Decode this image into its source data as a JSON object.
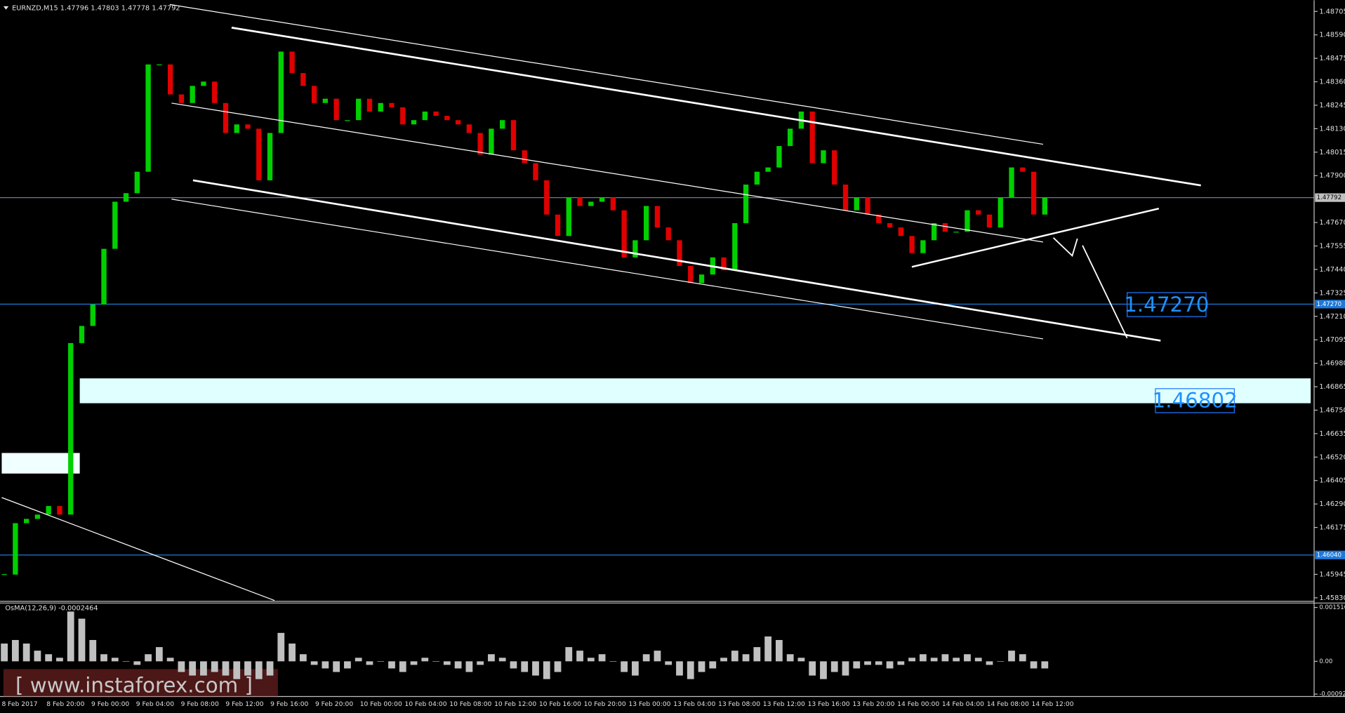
{
  "chart_data": {
    "type": "candlestick",
    "header": "EURNZD,M15  1.47796 1.47803 1.47778 1.47792",
    "ylim": [
      1.45817,
      1.4876
    ],
    "yticks": [
      1.48705,
      {
        "value": 1.4859,
        "label": "1.48590"
      },
      1.48475,
      {
        "value": 1.4836,
        "label": "1.48360"
      },
      1.48245,
      {
        "value": 1.4813,
        "label": "1.48130"
      },
      1.48015,
      {
        "value": 1.479,
        "label": "1.47900"
      },
      {
        "value": 1.4767,
        "label": "1.47670"
      },
      1.47555,
      {
        "value": 1.4744,
        "label": "1.47440"
      },
      1.47325,
      {
        "value": 1.4721,
        "label": "1.47210"
      },
      1.47095,
      {
        "value": 1.4698,
        "label": "1.46980"
      },
      1.46865,
      {
        "value": 1.4675,
        "label": "1.46750"
      },
      1.46635,
      {
        "value": 1.4652,
        "label": "1.46520"
      },
      1.46405,
      {
        "value": 1.4629,
        "label": "1.46290"
      },
      1.46175,
      1.45945,
      {
        "value": 1.4583,
        "label": "1.45830"
      }
    ],
    "levels": [
      {
        "value": 1.47792,
        "label": "1.47792",
        "color": "#6b7a99",
        "tag": "#c0c0c0"
      },
      {
        "value": 1.4727,
        "label": "1.47270",
        "color": "#1e78d8",
        "tag": "#1e78d8"
      },
      {
        "value": 1.4604,
        "label": "1.46040",
        "color": "#1e78d8",
        "tag": "#1e78d8"
      }
    ],
    "categories": [
      "8 Feb 2017",
      "8 Feb 20:00",
      "9 Feb 00:00",
      "9 Feb 04:00",
      "9 Feb 08:00",
      "9 Feb 12:00",
      "9 Feb 16:00",
      "9 Feb 20:00",
      "10 Feb 00:00",
      "10 Feb 04:00",
      "10 Feb 08:00",
      "10 Feb 12:00",
      "10 Feb 16:00",
      "10 Feb 20:00",
      "13 Feb 00:00",
      "13 Feb 04:00",
      "13 Feb 08:00",
      "13 Feb 12:00",
      "13 Feb 16:00",
      "13 Feb 20:00",
      "14 Feb 00:00",
      "14 Feb 04:00",
      "14 Feb 08:00",
      "14 Feb 12:00"
    ],
    "up_color": "#00d000",
    "down_color": "#e00000",
    "close": [
      1.45944,
      1.46196,
      1.46217,
      1.46238,
      1.4628,
      1.46238,
      1.47079,
      1.47163,
      1.47268,
      1.47541,
      1.47772,
      1.47814,
      1.47919,
      1.48445,
      1.48445,
      1.48298,
      1.48256,
      1.4834,
      1.48361,
      1.48256,
      1.48109,
      1.48151,
      1.4813,
      1.47877,
      1.48109,
      1.48508,
      1.48403,
      1.4834,
      1.48256,
      1.48277,
      1.48172,
      1.48172,
      1.48277,
      1.48214,
      1.48256,
      1.48235,
      1.48151,
      1.48172,
      1.48214,
      1.48193,
      1.48172,
      1.48151,
      1.48109,
      1.48003,
      1.4813,
      1.48172,
      1.48024,
      1.47961,
      1.47877,
      1.47709,
      1.47604,
      1.47793,
      1.47751,
      1.47772,
      1.47793,
      1.4773,
      1.47499,
      1.47583,
      1.47751,
      1.47646,
      1.47583,
      1.47457,
      1.47373,
      1.47415,
      1.47499,
      1.47436,
      1.47667,
      1.47856,
      1.47919,
      1.4794,
      1.48045,
      1.4813,
      1.48214,
      1.47961,
      1.48024,
      1.47856,
      1.4773,
      1.47793,
      1.47709,
      1.47667,
      1.47646,
      1.47604,
      1.4752,
      1.47583,
      1.47667,
      1.47625,
      1.47625,
      1.4773,
      1.47709,
      1.47646,
      1.47793,
      1.4794,
      1.47919,
      1.47709,
      1.47792
    ],
    "osma": {
      "label": "OsMA(12,26,9) -0.0002464",
      "color": "#c0c0c0",
      "ylim": [
        -0.00099,
        0.00164
      ],
      "yticks": [
        0.001516,
        {
          "value": 0,
          "label": "0.00"
        },
        -0.000922
      ],
      "values": [
        0.0005,
        0.0006,
        0.0005,
        0.0003,
        0.0002,
        0.0001,
        0.0014,
        0.0012,
        0.0006,
        0.0002,
        0.0001,
        0,
        -0.0001,
        0.0002,
        0.0004,
        0.0001,
        -0.0003,
        -0.0004,
        -0.0004,
        -0.0003,
        -0.0004,
        -0.0005,
        -0.0004,
        -0.0005,
        -0.0004,
        0.0008,
        0.0005,
        0.0002,
        -0.0001,
        -0.0002,
        -0.0003,
        -0.0002,
        0.0001,
        -0.0001,
        0,
        -0.0002,
        -0.0003,
        -0.0001,
        0.0001,
        0,
        -0.0001,
        -0.0002,
        -0.0003,
        -0.0001,
        0.0002,
        0.0001,
        -0.0002,
        -0.0003,
        -0.0004,
        -0.0005,
        -0.0003,
        0.0004,
        0.0003,
        0.0001,
        0.0002,
        0,
        -0.0003,
        -0.0004,
        0.0002,
        0.0003,
        -0.0001,
        -0.0004,
        -0.0005,
        -0.0003,
        -0.0002,
        0.0001,
        0.0003,
        0.0002,
        0.0004,
        0.0007,
        0.0006,
        0.0002,
        0.0001,
        -0.0004,
        -0.0005,
        -0.0003,
        -0.0004,
        -0.0002,
        -0.0001,
        -0.0001,
        -0.0002,
        -0.0001,
        0.0001,
        0.0002,
        0.0001,
        0.0002,
        0.0001,
        0.0002,
        0.0001,
        -0.0001,
        0,
        0.0003,
        0.0002,
        -0.0002,
        -0.0002
      ]
    },
    "annotations": [
      "1.47270",
      "1.46802"
    ],
    "watermark": "[ www.instaforex.com ]"
  }
}
